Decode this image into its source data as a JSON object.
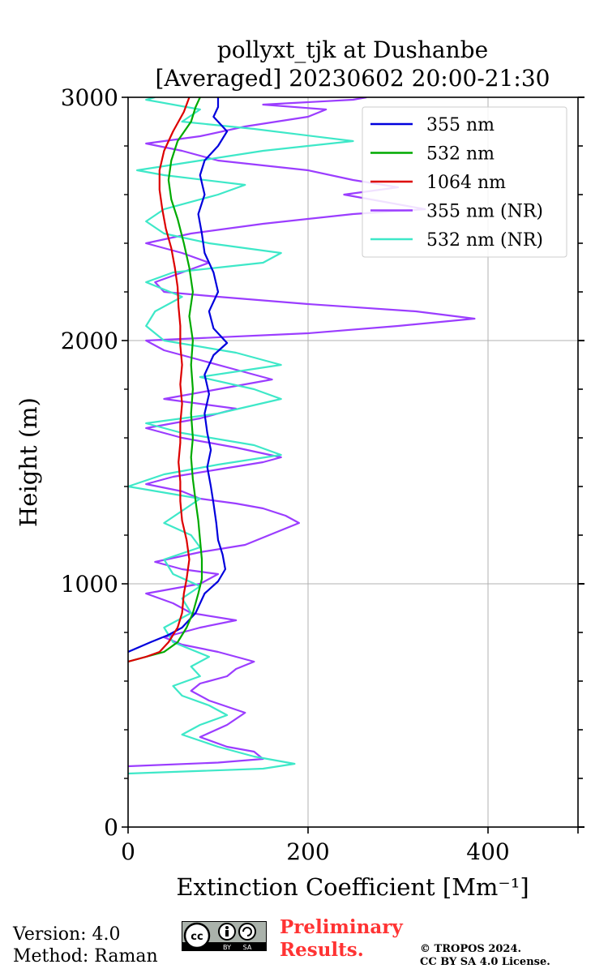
{
  "chart_data": {
    "type": "line",
    "title": "pollyxt_tjk at Dushanbe",
    "subtitle": "[Averaged] 20230602 20:00-21:30",
    "xlabel": "Extinction Coefficient [Mm⁻¹]",
    "ylabel": "Height (m)",
    "xlim": [
      0,
      500
    ],
    "ylim": [
      0,
      3000
    ],
    "x_ticks": [
      0,
      200,
      400
    ],
    "y_ticks": [
      0,
      1000,
      2000,
      3000
    ],
    "grid": true,
    "legend_position": "top-right",
    "series": [
      {
        "name": "355 nm",
        "color": "#0000dd",
        "points": [
          [
            0,
            720
          ],
          [
            25,
            760
          ],
          [
            45,
            790
          ],
          [
            60,
            820
          ],
          [
            75,
            880
          ],
          [
            85,
            960
          ],
          [
            100,
            1010
          ],
          [
            108,
            1060
          ],
          [
            105,
            1120
          ],
          [
            100,
            1180
          ],
          [
            98,
            1250
          ],
          [
            95,
            1330
          ],
          [
            92,
            1400
          ],
          [
            88,
            1480
          ],
          [
            92,
            1550
          ],
          [
            88,
            1620
          ],
          [
            85,
            1700
          ],
          [
            90,
            1780
          ],
          [
            85,
            1860
          ],
          [
            95,
            1940
          ],
          [
            110,
            1990
          ],
          [
            95,
            2050
          ],
          [
            90,
            2120
          ],
          [
            100,
            2200
          ],
          [
            95,
            2280
          ],
          [
            85,
            2360
          ],
          [
            82,
            2440
          ],
          [
            78,
            2520
          ],
          [
            85,
            2600
          ],
          [
            80,
            2680
          ],
          [
            85,
            2740
          ],
          [
            100,
            2800
          ],
          [
            110,
            2860
          ],
          [
            95,
            2920
          ],
          [
            100,
            2960
          ],
          [
            100,
            3000
          ]
        ]
      },
      {
        "name": "532 nm",
        "color": "#00aa00",
        "points": [
          [
            0,
            680
          ],
          [
            20,
            700
          ],
          [
            40,
            720
          ],
          [
            55,
            760
          ],
          [
            65,
            820
          ],
          [
            72,
            880
          ],
          [
            78,
            960
          ],
          [
            82,
            1020
          ],
          [
            82,
            1100
          ],
          [
            80,
            1180
          ],
          [
            78,
            1260
          ],
          [
            75,
            1340
          ],
          [
            72,
            1430
          ],
          [
            70,
            1520
          ],
          [
            72,
            1600
          ],
          [
            70,
            1700
          ],
          [
            72,
            1800
          ],
          [
            70,
            1900
          ],
          [
            72,
            2000
          ],
          [
            68,
            2100
          ],
          [
            72,
            2200
          ],
          [
            68,
            2300
          ],
          [
            62,
            2400
          ],
          [
            55,
            2500
          ],
          [
            48,
            2580
          ],
          [
            45,
            2660
          ],
          [
            48,
            2740
          ],
          [
            55,
            2820
          ],
          [
            70,
            2900
          ],
          [
            75,
            2960
          ],
          [
            80,
            3000
          ]
        ]
      },
      {
        "name": "1064 nm",
        "color": "#dd0000",
        "points": [
          [
            0,
            680
          ],
          [
            20,
            700
          ],
          [
            35,
            720
          ],
          [
            45,
            760
          ],
          [
            55,
            820
          ],
          [
            60,
            880
          ],
          [
            62,
            960
          ],
          [
            65,
            1020
          ],
          [
            68,
            1100
          ],
          [
            65,
            1180
          ],
          [
            60,
            1260
          ],
          [
            58,
            1340
          ],
          [
            58,
            1420
          ],
          [
            56,
            1500
          ],
          [
            58,
            1580
          ],
          [
            58,
            1660
          ],
          [
            60,
            1740
          ],
          [
            58,
            1820
          ],
          [
            60,
            1900
          ],
          [
            58,
            1980
          ],
          [
            58,
            2060
          ],
          [
            56,
            2140
          ],
          [
            55,
            2220
          ],
          [
            52,
            2300
          ],
          [
            48,
            2380
          ],
          [
            42,
            2460
          ],
          [
            38,
            2540
          ],
          [
            35,
            2620
          ],
          [
            35,
            2700
          ],
          [
            40,
            2780
          ],
          [
            50,
            2860
          ],
          [
            62,
            2940
          ],
          [
            68,
            3000
          ]
        ]
      },
      {
        "name": "355 nm (NR)",
        "color": "#9b3dff",
        "points": [
          [
            0,
            250
          ],
          [
            100,
            265
          ],
          [
            150,
            280
          ],
          [
            140,
            310
          ],
          [
            110,
            330
          ],
          [
            80,
            370
          ],
          [
            110,
            420
          ],
          [
            130,
            470
          ],
          [
            90,
            520
          ],
          [
            70,
            560
          ],
          [
            80,
            590
          ],
          [
            110,
            620
          ],
          [
            120,
            650
          ],
          [
            140,
            680
          ],
          [
            100,
            720
          ],
          [
            60,
            750
          ],
          [
            40,
            780
          ],
          [
            80,
            820
          ],
          [
            120,
            850
          ],
          [
            70,
            880
          ],
          [
            50,
            920
          ],
          [
            20,
            960
          ],
          [
            80,
            1000
          ],
          [
            100,
            1040
          ],
          [
            60,
            1060
          ],
          [
            30,
            1090
          ],
          [
            80,
            1130
          ],
          [
            130,
            1160
          ],
          [
            150,
            1190
          ],
          [
            170,
            1220
          ],
          [
            190,
            1250
          ],
          [
            175,
            1280
          ],
          [
            150,
            1310
          ],
          [
            120,
            1330
          ],
          [
            80,
            1350
          ],
          [
            60,
            1380
          ],
          [
            20,
            1410
          ],
          [
            50,
            1440
          ],
          [
            100,
            1470
          ],
          [
            150,
            1500
          ],
          [
            170,
            1520
          ],
          [
            120,
            1560
          ],
          [
            60,
            1600
          ],
          [
            20,
            1640
          ],
          [
            80,
            1680
          ],
          [
            120,
            1720
          ],
          [
            40,
            1760
          ],
          [
            100,
            1800
          ],
          [
            160,
            1840
          ],
          [
            120,
            1880
          ],
          [
            80,
            1920
          ],
          [
            40,
            1960
          ],
          [
            20,
            2000
          ],
          [
            200,
            2030
          ],
          [
            300,
            2060
          ],
          [
            385,
            2090
          ],
          [
            320,
            2120
          ],
          [
            200,
            2150
          ],
          [
            100,
            2180
          ],
          [
            40,
            2200
          ],
          [
            30,
            2240
          ],
          [
            60,
            2280
          ],
          [
            90,
            2320
          ],
          [
            60,
            2360
          ],
          [
            20,
            2400
          ],
          [
            70,
            2440
          ],
          [
            150,
            2480
          ],
          [
            250,
            2520
          ],
          [
            330,
            2540
          ],
          [
            300,
            2560
          ],
          [
            240,
            2600
          ],
          [
            300,
            2630
          ],
          [
            250,
            2660
          ],
          [
            200,
            2700
          ],
          [
            100,
            2740
          ],
          [
            60,
            2780
          ],
          [
            20,
            2810
          ],
          [
            80,
            2840
          ],
          [
            130,
            2880
          ],
          [
            200,
            2920
          ],
          [
            220,
            2950
          ],
          [
            150,
            2970
          ],
          [
            250,
            2990
          ],
          [
            265,
            3000
          ]
        ]
      },
      {
        "name": "532 nm (NR)",
        "color": "#3ee8c8",
        "points": [
          [
            0,
            220
          ],
          [
            150,
            240
          ],
          [
            185,
            260
          ],
          [
            140,
            290
          ],
          [
            100,
            330
          ],
          [
            60,
            380
          ],
          [
            80,
            420
          ],
          [
            110,
            460
          ],
          [
            90,
            500
          ],
          [
            60,
            540
          ],
          [
            50,
            580
          ],
          [
            80,
            620
          ],
          [
            70,
            660
          ],
          [
            90,
            700
          ],
          [
            50,
            760
          ],
          [
            40,
            820
          ],
          [
            70,
            880
          ],
          [
            60,
            940
          ],
          [
            80,
            990
          ],
          [
            50,
            1040
          ],
          [
            40,
            1100
          ],
          [
            80,
            1150
          ],
          [
            70,
            1200
          ],
          [
            40,
            1250
          ],
          [
            60,
            1300
          ],
          [
            80,
            1350
          ],
          [
            0,
            1400
          ],
          [
            40,
            1450
          ],
          [
            100,
            1490
          ],
          [
            170,
            1530
          ],
          [
            140,
            1570
          ],
          [
            60,
            1620
          ],
          [
            20,
            1660
          ],
          [
            100,
            1700
          ],
          [
            170,
            1760
          ],
          [
            140,
            1800
          ],
          [
            80,
            1850
          ],
          [
            170,
            1900
          ],
          [
            120,
            1950
          ],
          [
            40,
            2000
          ],
          [
            20,
            2060
          ],
          [
            30,
            2120
          ],
          [
            60,
            2180
          ],
          [
            20,
            2240
          ],
          [
            50,
            2280
          ],
          [
            150,
            2320
          ],
          [
            170,
            2360
          ],
          [
            90,
            2400
          ],
          [
            40,
            2440
          ],
          [
            20,
            2490
          ],
          [
            40,
            2540
          ],
          [
            100,
            2600
          ],
          [
            130,
            2640
          ],
          [
            40,
            2680
          ],
          [
            10,
            2700
          ],
          [
            80,
            2740
          ],
          [
            150,
            2780
          ],
          [
            250,
            2820
          ],
          [
            140,
            2870
          ],
          [
            60,
            2900
          ],
          [
            80,
            2950
          ],
          [
            20,
            2990
          ],
          [
            30,
            3000
          ]
        ]
      }
    ]
  },
  "footer": {
    "version": "Version: 4.0",
    "method": "Method: Raman",
    "preliminary_line1": "Preliminary",
    "preliminary_line2": "Results.",
    "copyright_line1": "© TROPOS 2024.",
    "copyright_line2": "CC BY SA 4.0 License."
  },
  "license_badge": {
    "cc": "cc",
    "by": "BY",
    "sa": "SA"
  }
}
